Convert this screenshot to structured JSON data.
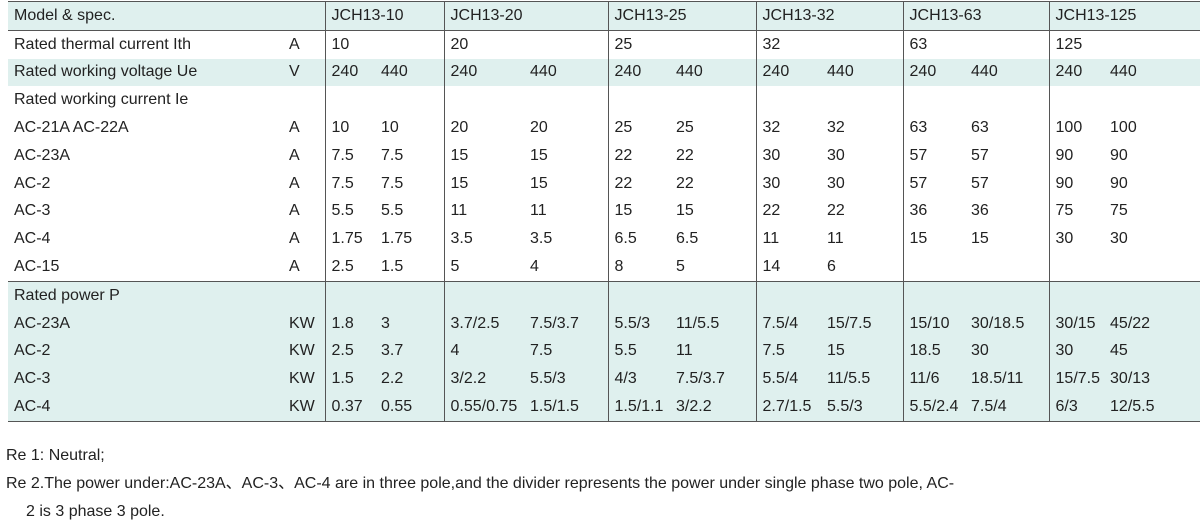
{
  "header": {
    "label": "Model & spec.",
    "models": [
      "JCH13-10",
      "JCH13-20",
      "JCH13-25",
      "JCH13-32",
      "JCH13-63",
      "JCH13-125"
    ]
  },
  "thermal": {
    "label": "Rated thermal current Ith",
    "unit": "A",
    "values": [
      "10",
      "20",
      "25",
      "32",
      "63",
      "125"
    ]
  },
  "voltage": {
    "label": "Rated working voltage Ue",
    "unit": "V",
    "values": [
      [
        "240",
        "440"
      ],
      [
        "240",
        "440"
      ],
      [
        "240",
        "440"
      ],
      [
        "240",
        "440"
      ],
      [
        "240",
        "440"
      ],
      [
        "240",
        "440"
      ]
    ]
  },
  "current": {
    "title": "Rated working current Ie",
    "rows": [
      {
        "label": "AC-21A  AC-22A",
        "unit": "A",
        "values": [
          [
            "10",
            "10"
          ],
          [
            "20",
            "20"
          ],
          [
            "25",
            "25"
          ],
          [
            "32",
            "32"
          ],
          [
            "63",
            "63"
          ],
          [
            "100",
            "100"
          ]
        ]
      },
      {
        "label": "AC-23A",
        "unit": "A",
        "values": [
          [
            "7.5",
            "7.5"
          ],
          [
            "15",
            "15"
          ],
          [
            "22",
            "22"
          ],
          [
            "30",
            "30"
          ],
          [
            "57",
            "57"
          ],
          [
            "90",
            "90"
          ]
        ]
      },
      {
        "label": "AC-2",
        "unit": "A",
        "values": [
          [
            "7.5",
            "7.5"
          ],
          [
            "15",
            "15"
          ],
          [
            "22",
            "22"
          ],
          [
            "30",
            "30"
          ],
          [
            "57",
            "57"
          ],
          [
            "90",
            "90"
          ]
        ]
      },
      {
        "label": "AC-3",
        "unit": "A",
        "values": [
          [
            "5.5",
            "5.5"
          ],
          [
            "11",
            "11"
          ],
          [
            "15",
            "15"
          ],
          [
            "22",
            "22"
          ],
          [
            "36",
            "36"
          ],
          [
            "75",
            "75"
          ]
        ]
      },
      {
        "label": "AC-4",
        "unit": "A",
        "values": [
          [
            "1.75",
            "1.75"
          ],
          [
            "3.5",
            "3.5"
          ],
          [
            "6.5",
            "6.5"
          ],
          [
            "11",
            "11"
          ],
          [
            "15",
            "15"
          ],
          [
            "30",
            "30"
          ]
        ]
      },
      {
        "label": "AC-15",
        "unit": "A",
        "values": [
          [
            "2.5",
            "1.5"
          ],
          [
            "5",
            "4"
          ],
          [
            "8",
            "5"
          ],
          [
            "14",
            "6"
          ],
          [
            "",
            ""
          ],
          [
            "",
            ""
          ]
        ]
      }
    ]
  },
  "power": {
    "title": "Rated power P",
    "rows": [
      {
        "label": "AC-23A",
        "unit": "KW",
        "values": [
          [
            "1.8",
            "3"
          ],
          [
            "3.7/2.5",
            "7.5/3.7"
          ],
          [
            "5.5/3",
            "11/5.5"
          ],
          [
            "7.5/4",
            "15/7.5"
          ],
          [
            "15/10",
            "30/18.5"
          ],
          [
            "30/15",
            "45/22"
          ]
        ]
      },
      {
        "label": "AC-2",
        "unit": "KW",
        "values": [
          [
            "2.5",
            "3.7"
          ],
          [
            "4",
            "7.5"
          ],
          [
            "5.5",
            "11"
          ],
          [
            "7.5",
            "15"
          ],
          [
            "18.5",
            "30"
          ],
          [
            "30",
            "45"
          ]
        ]
      },
      {
        "label": "AC-3",
        "unit": "KW",
        "values": [
          [
            "1.5",
            "2.2"
          ],
          [
            "3/2.2",
            "5.5/3"
          ],
          [
            "4/3",
            "7.5/3.7"
          ],
          [
            "5.5/4",
            "11/5.5"
          ],
          [
            "11/6",
            "18.5/11"
          ],
          [
            "15/7.5",
            "30/13"
          ]
        ]
      },
      {
        "label": "AC-4",
        "unit": "KW",
        "values": [
          [
            "0.37",
            "0.55"
          ],
          [
            "0.55/0.75",
            "1.5/1.5"
          ],
          [
            "1.5/1.1",
            "3/2.2"
          ],
          [
            "2.7/1.5",
            "5.5/3"
          ],
          [
            "5.5/2.4",
            "7.5/4"
          ],
          [
            "6/3",
            "12/5.5"
          ]
        ]
      }
    ]
  },
  "notes": {
    "re1": "Re 1: Neutral;",
    "re2_line1": "Re 2.The power under:AC-23A、AC-3、AC-4 are in three pole,and the divider represents the power under single phase two pole, AC-",
    "re2_line2": "2 is 3 phase 3 pole."
  },
  "colors": {
    "shade": "#dff0ee",
    "rule": "#555555",
    "text": "#222222"
  }
}
